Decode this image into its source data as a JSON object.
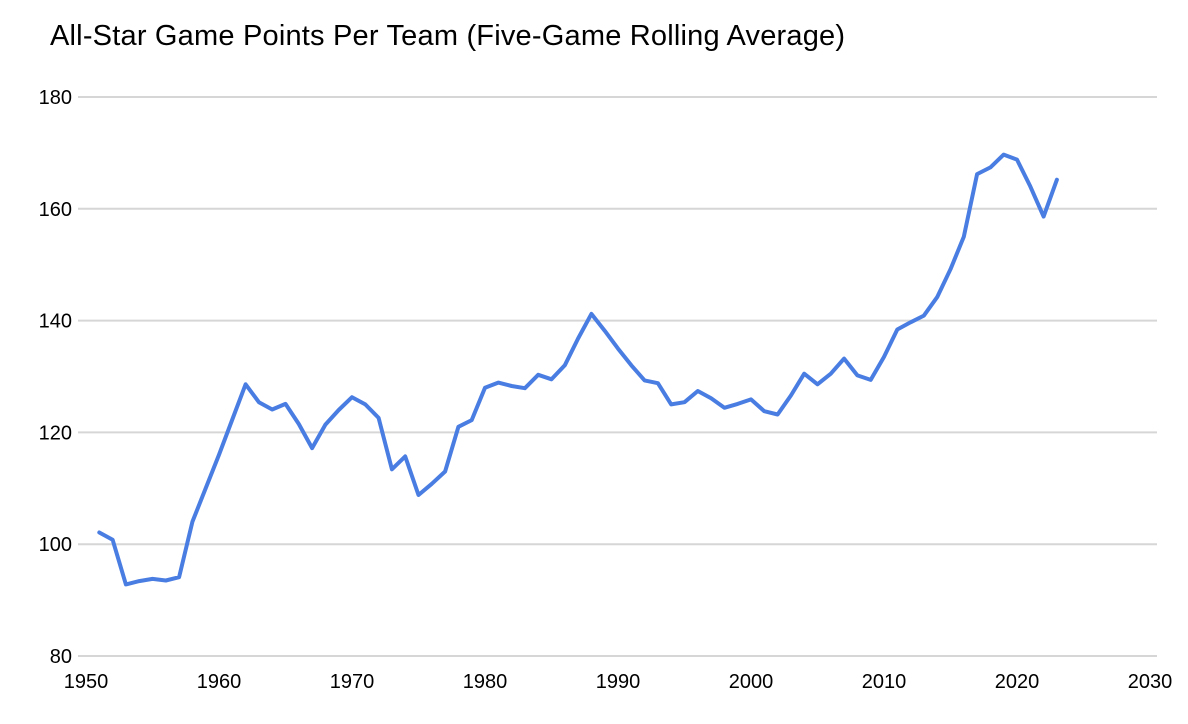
{
  "title": "All-Star Game Points Per Team (Five-Game Rolling Average)",
  "colors": {
    "line": "#4a7de2",
    "gridline": "#d6d6d6",
    "text": "#000000",
    "background": "#ffffff"
  },
  "chart_data": {
    "type": "line",
    "title": "All-Star Game Points Per Team (Five-Game Rolling Average)",
    "xlabel": "",
    "ylabel": "",
    "xlim": [
      1950,
      2030
    ],
    "ylim": [
      80,
      180
    ],
    "x_axis_ticks": [
      1950,
      1960,
      1970,
      1980,
      1990,
      2000,
      2010,
      2020,
      2030
    ],
    "y_axis_ticks": [
      180,
      160,
      140,
      120,
      100,
      80
    ],
    "grid": "horizontal",
    "legend": "none",
    "x": [
      1951,
      1952,
      1953,
      1954,
      1955,
      1956,
      1957,
      1958,
      1959,
      1960,
      1961,
      1962,
      1963,
      1964,
      1965,
      1966,
      1967,
      1968,
      1969,
      1970,
      1971,
      1972,
      1973,
      1974,
      1975,
      1976,
      1977,
      1978,
      1979,
      1980,
      1981,
      1982,
      1983,
      1984,
      1985,
      1986,
      1987,
      1988,
      1989,
      1990,
      1991,
      1992,
      1993,
      1994,
      1995,
      1996,
      1997,
      1998,
      1999,
      2000,
      2001,
      2002,
      2003,
      2004,
      2005,
      2006,
      2007,
      2008,
      2009,
      2010,
      2011,
      2012,
      2013,
      2014,
      2015,
      2016,
      2017,
      2018,
      2019,
      2020,
      2021,
      2022,
      2023
    ],
    "values": [
      102.1,
      100.8,
      92.8,
      93.4,
      93.8,
      93.5,
      94.1,
      104.0,
      110.0,
      116.0,
      122.3,
      128.6,
      125.4,
      124.1,
      125.1,
      121.5,
      117.2,
      121.4,
      124.0,
      126.3,
      125.0,
      122.6,
      113.4,
      115.7,
      108.8,
      110.8,
      113.0,
      121.0,
      122.2,
      128.0,
      128.9,
      128.3,
      127.9,
      130.3,
      129.5,
      132.0,
      136.8,
      141.2,
      138.2,
      135.0,
      132.0,
      129.3,
      128.8,
      125.0,
      125.4,
      127.4,
      126.1,
      124.4,
      125.1,
      125.9,
      123.8,
      123.2,
      126.6,
      130.5,
      128.6,
      130.5,
      133.2,
      130.2,
      129.4,
      133.5,
      138.4,
      139.7,
      140.9,
      144.2,
      149.2,
      155.0,
      166.2,
      167.4,
      169.7,
      168.8,
      164.0,
      158.6,
      165.2
    ]
  }
}
